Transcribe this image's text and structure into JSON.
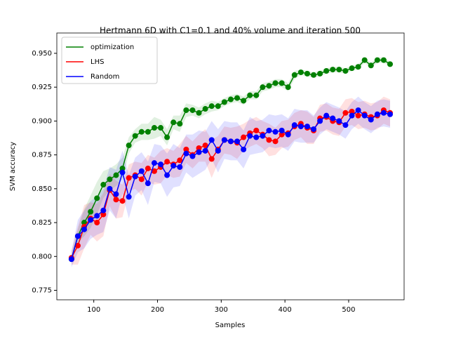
{
  "chart_data": {
    "type": "line",
    "title": "Hertmann 6D with C1=0.1 and 40% volume and iteration 500",
    "x_label": "Samples",
    "y_label": "SVM accuracy",
    "x": [
      65,
      75,
      85,
      95,
      105,
      115,
      125,
      135,
      145,
      155,
      165,
      175,
      185,
      195,
      205,
      215,
      225,
      235,
      245,
      255,
      265,
      275,
      285,
      295,
      305,
      315,
      325,
      335,
      345,
      355,
      365,
      375,
      385,
      395,
      405,
      415,
      425,
      435,
      445,
      455,
      465,
      475,
      485,
      495,
      505,
      515,
      525,
      535,
      545,
      555,
      565
    ],
    "series": [
      {
        "name": "optimization",
        "color": "#008000",
        "values": [
          0.798,
          0.815,
          0.825,
          0.833,
          0.843,
          0.853,
          0.857,
          0.86,
          0.865,
          0.882,
          0.889,
          0.892,
          0.892,
          0.895,
          0.895,
          0.888,
          0.899,
          0.898,
          0.908,
          0.908,
          0.906,
          0.909,
          0.911,
          0.911,
          0.914,
          0.916,
          0.917,
          0.915,
          0.919,
          0.919,
          0.925,
          0.926,
          0.928,
          0.928,
          0.925,
          0.934,
          0.936,
          0.935,
          0.934,
          0.935,
          0.937,
          0.938,
          0.938,
          0.937,
          0.939,
          0.94,
          0.945,
          0.941,
          0.945,
          0.945,
          0.942
        ],
        "error": [
          0.003,
          0.005,
          0.01,
          0.012,
          0.012,
          0.01,
          0.008,
          0.008,
          0.008,
          0.006,
          0.005,
          0.006,
          0.006,
          0.008,
          0.006,
          0.006,
          0.005,
          0.006,
          0.005,
          0.004,
          0.004,
          0.004,
          0.004,
          0.003,
          0.003,
          0.003,
          0.003,
          0.003,
          0.003,
          0.003,
          0.003,
          0.003,
          0.003,
          0.003,
          0.003,
          0.003,
          0.002,
          0.002,
          0.002,
          0.002,
          0.002,
          0.002,
          0.002,
          0.002,
          0.002,
          0.002,
          0.002,
          0.002,
          0.002,
          0.002,
          0.002
        ]
      },
      {
        "name": "LHS",
        "color": "#ff0000",
        "values": [
          0.799,
          0.808,
          0.822,
          0.828,
          0.825,
          0.831,
          0.849,
          0.842,
          0.841,
          0.858,
          0.86,
          0.857,
          0.865,
          0.863,
          0.866,
          0.87,
          0.868,
          0.871,
          0.879,
          0.875,
          0.88,
          0.882,
          0.872,
          0.879,
          0.886,
          0.885,
          0.884,
          0.888,
          0.891,
          0.893,
          0.89,
          0.886,
          0.885,
          0.89,
          0.891,
          0.896,
          0.898,
          0.895,
          0.893,
          0.902,
          0.903,
          0.9,
          0.899,
          0.906,
          0.907,
          0.904,
          0.905,
          0.903,
          0.904,
          0.908,
          0.906
        ],
        "error": [
          0.005,
          0.014,
          0.016,
          0.012,
          0.014,
          0.016,
          0.012,
          0.014,
          0.012,
          0.01,
          0.01,
          0.012,
          0.01,
          0.01,
          0.012,
          0.01,
          0.01,
          0.012,
          0.01,
          0.01,
          0.01,
          0.012,
          0.014,
          0.01,
          0.01,
          0.01,
          0.012,
          0.01,
          0.01,
          0.01,
          0.01,
          0.012,
          0.01,
          0.01,
          0.01,
          0.01,
          0.01,
          0.012,
          0.01,
          0.01,
          0.01,
          0.01,
          0.01,
          0.01,
          0.01,
          0.01,
          0.01,
          0.01,
          0.01,
          0.01,
          0.01
        ]
      },
      {
        "name": "Random",
        "color": "#0000ff",
        "values": [
          0.798,
          0.815,
          0.82,
          0.827,
          0.83,
          0.834,
          0.85,
          0.846,
          0.862,
          0.844,
          0.859,
          0.863,
          0.854,
          0.869,
          0.868,
          0.86,
          0.867,
          0.866,
          0.876,
          0.874,
          0.877,
          0.878,
          0.886,
          0.878,
          0.886,
          0.885,
          0.885,
          0.879,
          0.889,
          0.888,
          0.889,
          0.893,
          0.892,
          0.893,
          0.89,
          0.897,
          0.896,
          0.896,
          0.894,
          0.9,
          0.904,
          0.902,
          0.9,
          0.897,
          0.904,
          0.908,
          0.904,
          0.901,
          0.905,
          0.906,
          0.905
        ],
        "error": [
          0.006,
          0.012,
          0.014,
          0.014,
          0.014,
          0.016,
          0.016,
          0.018,
          0.016,
          0.016,
          0.014,
          0.014,
          0.016,
          0.014,
          0.014,
          0.016,
          0.016,
          0.014,
          0.014,
          0.016,
          0.016,
          0.014,
          0.014,
          0.016,
          0.014,
          0.014,
          0.014,
          0.014,
          0.014,
          0.012,
          0.012,
          0.012,
          0.012,
          0.012,
          0.012,
          0.012,
          0.012,
          0.012,
          0.01,
          0.01,
          0.01,
          0.01,
          0.01,
          0.01,
          0.01,
          0.01,
          0.01,
          0.01,
          0.01,
          0.01,
          0.01
        ]
      }
    ],
    "xlim": [
      42,
      587
    ],
    "xticks": [
      100,
      200,
      300,
      400,
      500
    ],
    "ylim": [
      0.768,
      0.965
    ],
    "yticks": [
      0.775,
      {
        "value": 0.8,
        "label": "0.800"
      },
      0.825,
      {
        "value": 0.85,
        "label": "0.850"
      },
      0.875,
      {
        "value": 0.9,
        "label": "0.900"
      },
      0.925,
      {
        "value": 0.95,
        "label": "0.950"
      }
    ],
    "legend": "upper left"
  }
}
